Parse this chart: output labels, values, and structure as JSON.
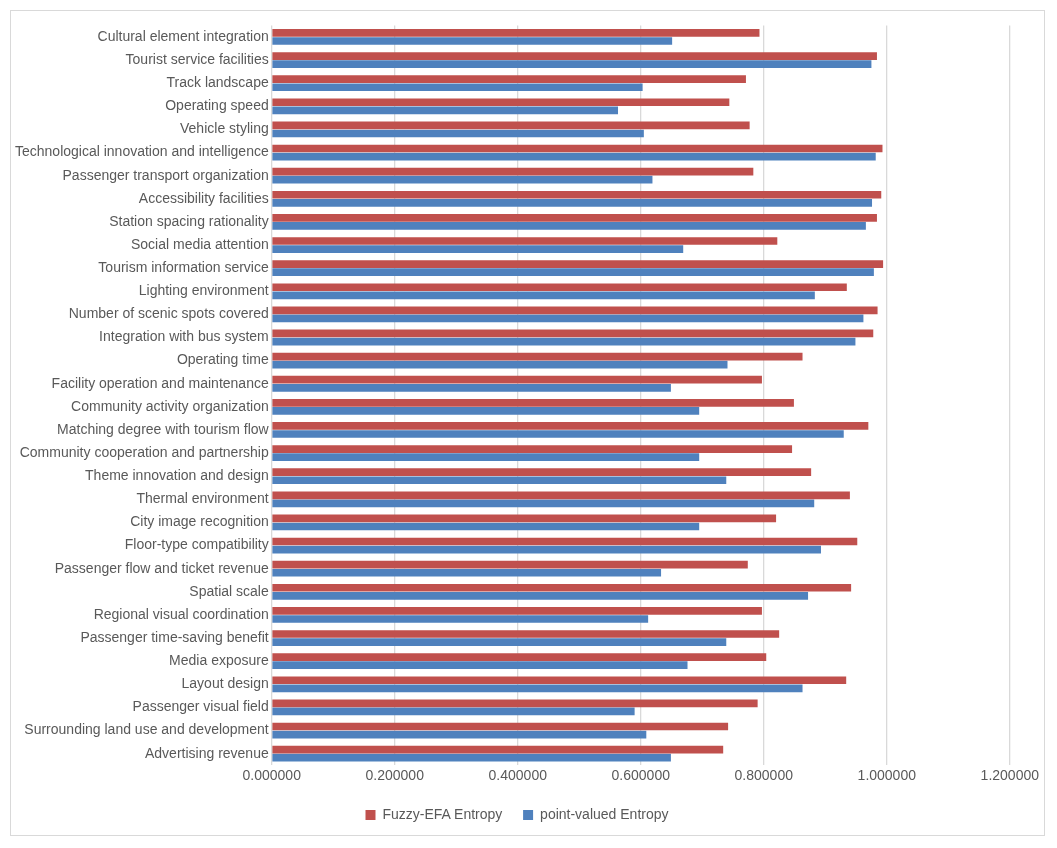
{
  "chart_data": {
    "type": "bar",
    "orientation": "horizontal",
    "categories": [
      "Cultural element integration",
      "Tourist service facilities",
      "Track landscape",
      "Operating speed",
      "Vehicle styling",
      "Technological innovation and intelligence",
      "Passenger transport organization",
      "Accessibility facilities",
      "Station spacing rationality",
      "Social media attention",
      "Tourism information service",
      "Lighting environment",
      "Number of scenic spots covered",
      "Integration with bus system",
      "Operating time",
      "Facility operation and maintenance",
      "Community activity organization",
      "Matching degree with tourism flow",
      "Community cooperation and partnership",
      "Theme innovation and design",
      "Thermal environment",
      "City image recognition",
      "Floor-type compatibility",
      "Passenger flow and ticket revenue",
      "Spatial scale",
      "Regional visual coordination",
      "Passenger time-saving benefit",
      "Media exposure",
      "Layout design",
      "Passenger visual field",
      "Surrounding land use and development",
      "Advertising revenue"
    ],
    "series": [
      {
        "name": "Fuzzy-EFA Entropy",
        "color": "#c0504d",
        "values": [
          0.793,
          0.984,
          0.771,
          0.744,
          0.777,
          0.993,
          0.783,
          0.991,
          0.984,
          0.822,
          0.994,
          0.935,
          0.985,
          0.978,
          0.863,
          0.797,
          0.849,
          0.97,
          0.846,
          0.877,
          0.94,
          0.82,
          0.952,
          0.774,
          0.942,
          0.797,
          0.825,
          0.804,
          0.934,
          0.79,
          0.742,
          0.734
        ]
      },
      {
        "name": "point-valued Entropy",
        "color": "#4f81bd",
        "values": [
          0.651,
          0.975,
          0.603,
          0.563,
          0.605,
          0.982,
          0.619,
          0.976,
          0.966,
          0.669,
          0.979,
          0.883,
          0.962,
          0.949,
          0.741,
          0.649,
          0.695,
          0.93,
          0.695,
          0.739,
          0.882,
          0.695,
          0.893,
          0.633,
          0.872,
          0.612,
          0.739,
          0.676,
          0.863,
          0.59,
          0.609,
          0.649
        ]
      }
    ],
    "xlim": [
      0,
      1.2
    ],
    "xticks": [
      {
        "value": 0,
        "label": "0.000000"
      },
      {
        "value": 0.2,
        "label": "0.200000"
      },
      {
        "value": 0.4,
        "label": "0.400000"
      },
      {
        "value": 0.6,
        "label": "0.600000"
      },
      {
        "value": 0.8,
        "label": "0.800000"
      },
      {
        "value": 1.0,
        "label": "1.000000"
      },
      {
        "value": 1.2,
        "label": "1.200000"
      }
    ],
    "grid": "x",
    "legend": "bottom"
  }
}
